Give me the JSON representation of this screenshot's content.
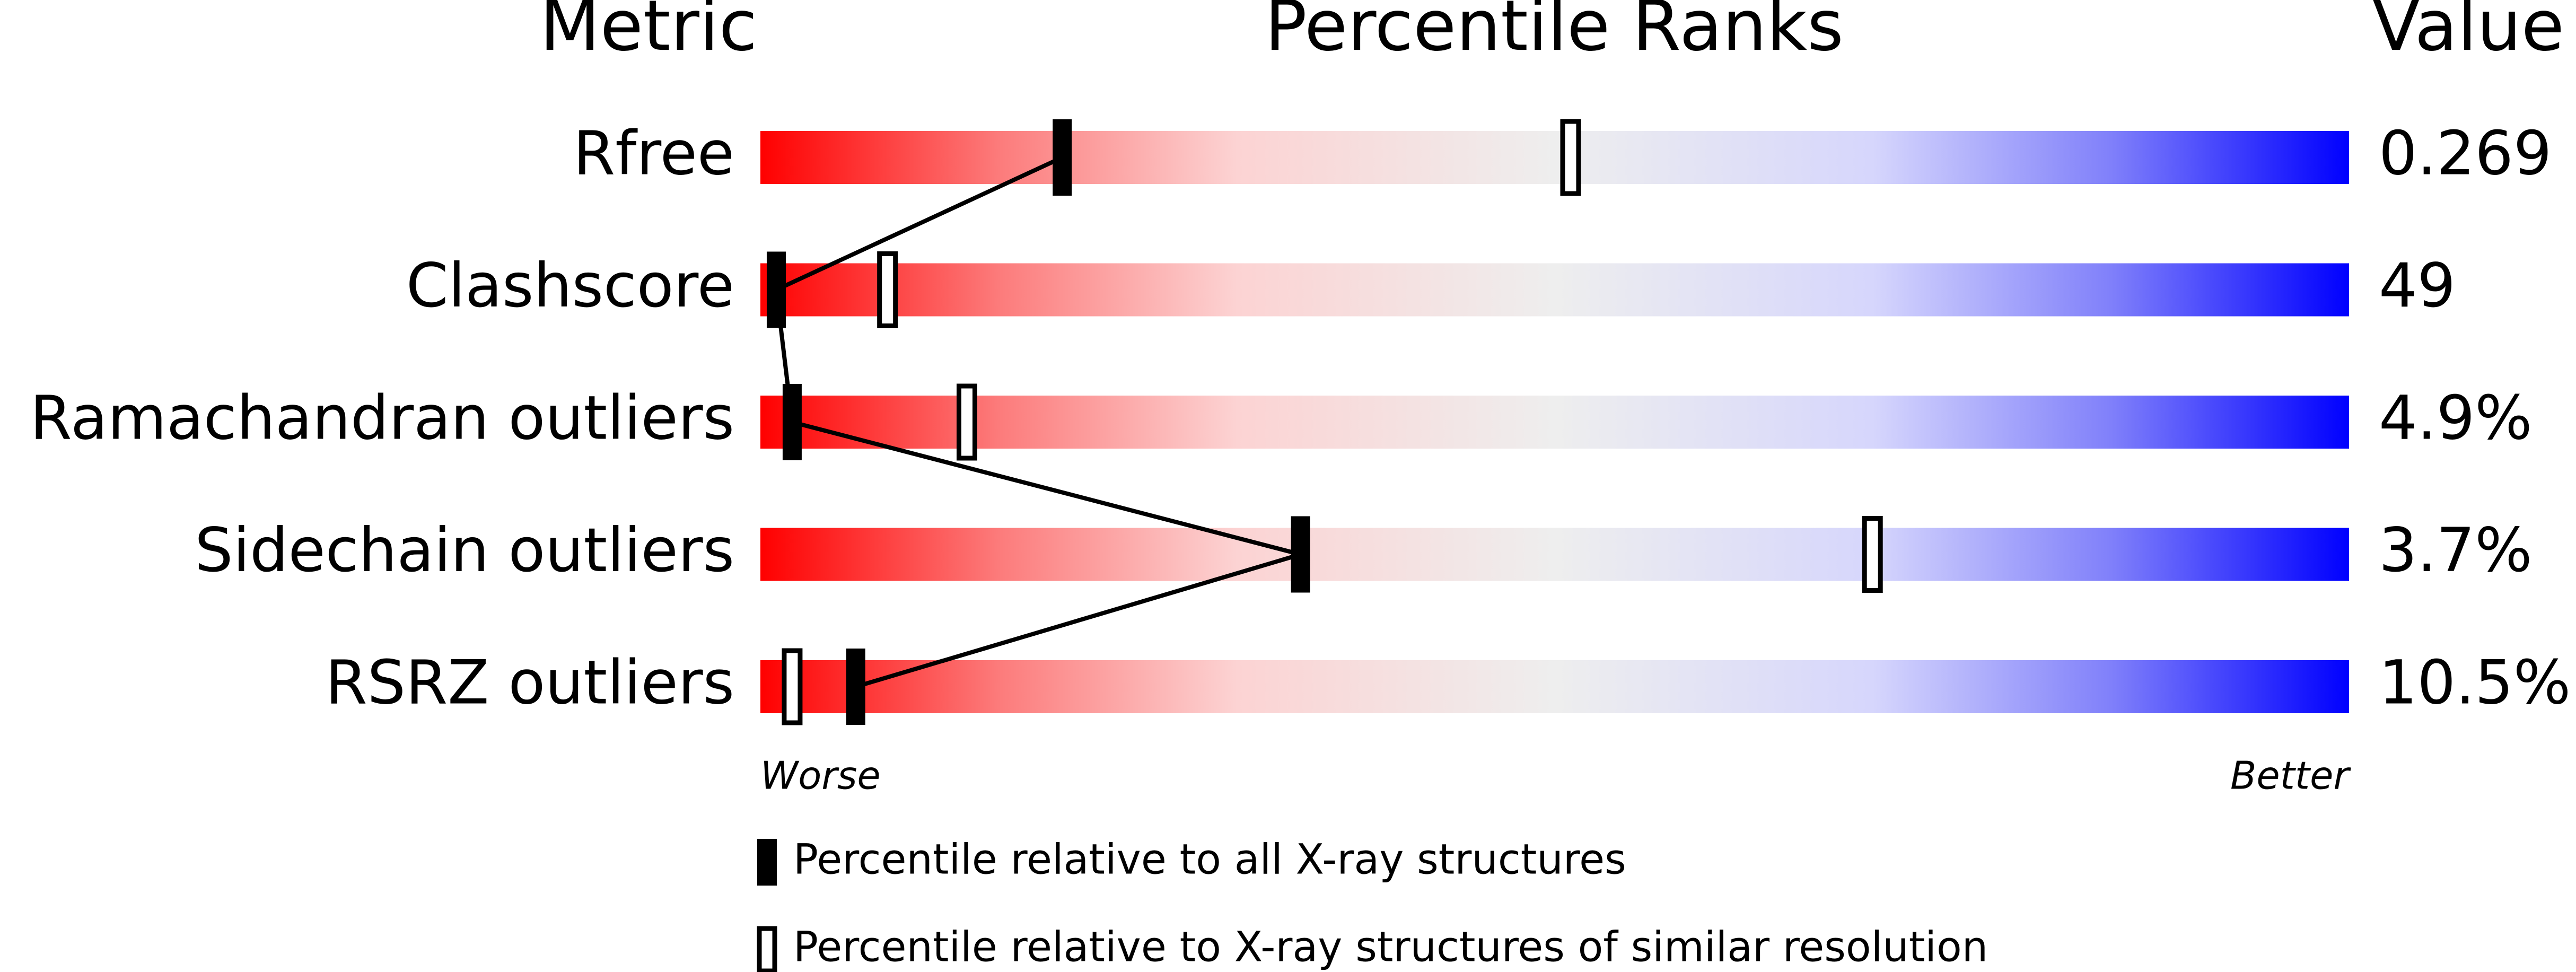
{
  "chart_data": {
    "type": "slider",
    "headers": [
      "Metric",
      "Percentile Ranks",
      "Value"
    ],
    "categories": [
      "Rfree",
      "Clashscore",
      "Ramachandran outliers",
      "Sidechain outliers",
      "RSRZ outliers"
    ],
    "metric_values": [
      "0.269",
      "49",
      "4.9%",
      "3.7%",
      "10.5%"
    ],
    "xlim": [
      0,
      100
    ],
    "x_axis_labels": [
      "Worse",
      "Better"
    ],
    "series": [
      {
        "name": "Percentile relative to all X-ray structures",
        "color": "#000000",
        "style": "filled",
        "values": [
          19,
          1,
          2,
          34,
          6
        ]
      },
      {
        "name": "Percentile relative to X-ray structures of similar resolution",
        "color": "#000000",
        "style": "open",
        "values": [
          51,
          8,
          13,
          70,
          2
        ]
      }
    ],
    "connect_series": 0
  }
}
